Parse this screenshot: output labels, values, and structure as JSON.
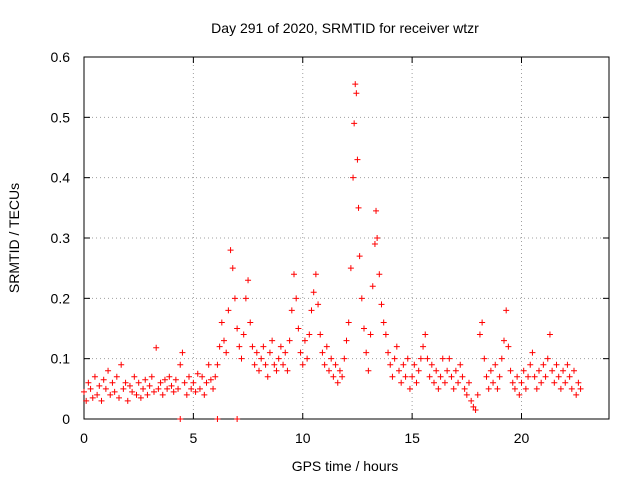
{
  "chart_data": {
    "type": "scatter",
    "title": "Day 291 of 2020, SRMTID for receiver wtzr",
    "xlabel": "GPS time / hours",
    "ylabel": "SRMTID / TECUs",
    "xlim": [
      0,
      24
    ],
    "ylim": [
      0,
      0.6
    ],
    "xticks": [
      0,
      5,
      10,
      15,
      20
    ],
    "xtick_labels": [
      "0",
      "5",
      "10",
      "15",
      "20"
    ],
    "yticks": [
      0,
      0.1,
      0.2,
      0.3,
      0.4,
      0.5,
      0.6
    ],
    "ytick_labels": [
      "0",
      "0.1",
      "0.2",
      "0.3",
      "0.4",
      "0.5",
      "0.6"
    ],
    "grid": true,
    "marker": "+",
    "color": "#ff0000",
    "series": [
      {
        "name": "SRMTID",
        "points": [
          [
            0.0,
            0.045
          ],
          [
            0.1,
            0.03
          ],
          [
            0.2,
            0.06
          ],
          [
            0.3,
            0.05
          ],
          [
            0.4,
            0.035
          ],
          [
            0.5,
            0.07
          ],
          [
            0.6,
            0.04
          ],
          [
            0.7,
            0.055
          ],
          [
            0.8,
            0.03
          ],
          [
            0.9,
            0.065
          ],
          [
            1.0,
            0.05
          ],
          [
            1.1,
            0.08
          ],
          [
            1.2,
            0.04
          ],
          [
            1.3,
            0.06
          ],
          [
            1.4,
            0.045
          ],
          [
            1.5,
            0.07
          ],
          [
            1.6,
            0.035
          ],
          [
            1.7,
            0.09
          ],
          [
            1.8,
            0.05
          ],
          [
            1.9,
            0.06
          ],
          [
            2.0,
            0.03
          ],
          [
            2.1,
            0.055
          ],
          [
            2.2,
            0.045
          ],
          [
            2.3,
            0.07
          ],
          [
            2.4,
            0.04
          ],
          [
            2.5,
            0.06
          ],
          [
            2.6,
            0.035
          ],
          [
            2.7,
            0.05
          ],
          [
            2.8,
            0.065
          ],
          [
            2.9,
            0.04
          ],
          [
            3.0,
            0.055
          ],
          [
            3.1,
            0.07
          ],
          [
            3.2,
            0.045
          ],
          [
            3.3,
            0.118
          ],
          [
            3.4,
            0.05
          ],
          [
            3.5,
            0.06
          ],
          [
            3.6,
            0.04
          ],
          [
            3.7,
            0.065
          ],
          [
            3.8,
            0.05
          ],
          [
            3.9,
            0.07
          ],
          [
            4.0,
            0.055
          ],
          [
            4.1,
            0.045
          ],
          [
            4.2,
            0.065
          ],
          [
            4.3,
            0.05
          ],
          [
            4.4,
            0.09
          ],
          [
            4.5,
            0.11
          ],
          [
            4.6,
            0.06
          ],
          [
            4.7,
            0.04
          ],
          [
            4.8,
            0.07
          ],
          [
            4.9,
            0.05
          ],
          [
            5.0,
            0.06
          ],
          [
            5.1,
            0.045
          ],
          [
            5.2,
            0.075
          ],
          [
            5.3,
            0.05
          ],
          [
            5.4,
            0.07
          ],
          [
            5.5,
            0.04
          ],
          [
            5.6,
            0.06
          ],
          [
            5.7,
            0.09
          ],
          [
            5.8,
            0.065
          ],
          [
            5.9,
            0.05
          ],
          [
            6.0,
            0.07
          ],
          [
            6.1,
            0.09
          ],
          [
            6.2,
            0.12
          ],
          [
            6.3,
            0.16
          ],
          [
            6.4,
            0.13
          ],
          [
            6.5,
            0.11
          ],
          [
            6.6,
            0.18
          ],
          [
            6.7,
            0.28
          ],
          [
            6.8,
            0.25
          ],
          [
            6.9,
            0.2
          ],
          [
            7.0,
            0.15
          ],
          [
            7.1,
            0.12
          ],
          [
            7.2,
            0.1
          ],
          [
            7.3,
            0.14
          ],
          [
            7.4,
            0.2
          ],
          [
            7.5,
            0.23
          ],
          [
            7.6,
            0.16
          ],
          [
            7.7,
            0.12
          ],
          [
            7.8,
            0.09
          ],
          [
            7.9,
            0.11
          ],
          [
            8.0,
            0.08
          ],
          [
            8.1,
            0.1
          ],
          [
            8.2,
            0.12
          ],
          [
            8.3,
            0.09
          ],
          [
            8.4,
            0.07
          ],
          [
            8.5,
            0.11
          ],
          [
            8.6,
            0.13
          ],
          [
            8.7,
            0.09
          ],
          [
            8.8,
            0.08
          ],
          [
            8.9,
            0.1
          ],
          [
            9.0,
            0.12
          ],
          [
            9.1,
            0.09
          ],
          [
            9.2,
            0.11
          ],
          [
            9.3,
            0.08
          ],
          [
            9.4,
            0.13
          ],
          [
            9.5,
            0.18
          ],
          [
            9.6,
            0.24
          ],
          [
            9.7,
            0.2
          ],
          [
            9.8,
            0.15
          ],
          [
            9.9,
            0.11
          ],
          [
            10.0,
            0.09
          ],
          [
            10.1,
            0.13
          ],
          [
            10.2,
            0.1
          ],
          [
            10.3,
            0.14
          ],
          [
            10.4,
            0.18
          ],
          [
            10.5,
            0.21
          ],
          [
            10.6,
            0.24
          ],
          [
            10.7,
            0.19
          ],
          [
            10.8,
            0.14
          ],
          [
            10.9,
            0.11
          ],
          [
            11.0,
            0.09
          ],
          [
            11.1,
            0.12
          ],
          [
            11.2,
            0.08
          ],
          [
            11.3,
            0.1
          ],
          [
            11.4,
            0.07
          ],
          [
            11.5,
            0.09
          ],
          [
            11.6,
            0.06
          ],
          [
            11.7,
            0.08
          ],
          [
            11.8,
            0.07
          ],
          [
            11.9,
            0.1
          ],
          [
            12.0,
            0.13
          ],
          [
            12.1,
            0.16
          ],
          [
            12.2,
            0.25
          ],
          [
            12.3,
            0.4
          ],
          [
            12.35,
            0.49
          ],
          [
            12.4,
            0.555
          ],
          [
            12.45,
            0.54
          ],
          [
            12.5,
            0.43
          ],
          [
            12.55,
            0.35
          ],
          [
            12.6,
            0.27
          ],
          [
            12.7,
            0.2
          ],
          [
            12.8,
            0.15
          ],
          [
            12.9,
            0.11
          ],
          [
            13.0,
            0.08
          ],
          [
            13.1,
            0.14
          ],
          [
            13.2,
            0.22
          ],
          [
            13.3,
            0.29
          ],
          [
            13.35,
            0.345
          ],
          [
            13.4,
            0.3
          ],
          [
            13.5,
            0.24
          ],
          [
            13.6,
            0.19
          ],
          [
            13.7,
            0.16
          ],
          [
            13.8,
            0.14
          ],
          [
            13.9,
            0.11
          ],
          [
            14.0,
            0.09
          ],
          [
            14.1,
            0.07
          ],
          [
            14.2,
            0.1
          ],
          [
            14.3,
            0.12
          ],
          [
            14.4,
            0.08
          ],
          [
            14.5,
            0.06
          ],
          [
            14.6,
            0.09
          ],
          [
            14.7,
            0.07
          ],
          [
            14.8,
            0.1
          ],
          [
            14.9,
            0.05
          ],
          [
            15.0,
            0.07
          ],
          [
            15.1,
            0.09
          ],
          [
            15.2,
            0.06
          ],
          [
            15.3,
            0.08
          ],
          [
            15.4,
            0.1
          ],
          [
            15.5,
            0.12
          ],
          [
            15.6,
            0.14
          ],
          [
            15.7,
            0.1
          ],
          [
            15.8,
            0.07
          ],
          [
            15.9,
            0.09
          ],
          [
            16.0,
            0.06
          ],
          [
            16.1,
            0.08
          ],
          [
            16.2,
            0.05
          ],
          [
            16.3,
            0.07
          ],
          [
            16.4,
            0.1
          ],
          [
            16.5,
            0.06
          ],
          [
            16.6,
            0.08
          ],
          [
            16.7,
            0.1
          ],
          [
            16.8,
            0.07
          ],
          [
            16.9,
            0.05
          ],
          [
            17.0,
            0.08
          ],
          [
            17.1,
            0.06
          ],
          [
            17.2,
            0.09
          ],
          [
            17.3,
            0.07
          ],
          [
            17.4,
            0.05
          ],
          [
            17.5,
            0.04
          ],
          [
            17.6,
            0.06
          ],
          [
            17.7,
            0.03
          ],
          [
            17.8,
            0.02
          ],
          [
            17.9,
            0.015
          ],
          [
            18.0,
            0.04
          ],
          [
            18.1,
            0.14
          ],
          [
            18.2,
            0.16
          ],
          [
            18.3,
            0.1
          ],
          [
            18.4,
            0.07
          ],
          [
            18.5,
            0.05
          ],
          [
            18.6,
            0.08
          ],
          [
            18.7,
            0.06
          ],
          [
            18.8,
            0.09
          ],
          [
            18.9,
            0.05
          ],
          [
            19.0,
            0.07
          ],
          [
            19.1,
            0.1
          ],
          [
            19.2,
            0.13
          ],
          [
            19.3,
            0.18
          ],
          [
            19.4,
            0.12
          ],
          [
            19.5,
            0.08
          ],
          [
            19.6,
            0.06
          ],
          [
            19.7,
            0.05
          ],
          [
            19.8,
            0.07
          ],
          [
            19.9,
            0.04
          ],
          [
            20.0,
            0.06
          ],
          [
            20.1,
            0.08
          ],
          [
            20.2,
            0.05
          ],
          [
            20.3,
            0.07
          ],
          [
            20.4,
            0.09
          ],
          [
            20.5,
            0.11
          ],
          [
            20.6,
            0.07
          ],
          [
            20.7,
            0.05
          ],
          [
            20.8,
            0.08
          ],
          [
            20.9,
            0.06
          ],
          [
            21.0,
            0.09
          ],
          [
            21.1,
            0.07
          ],
          [
            21.2,
            0.1
          ],
          [
            21.3,
            0.14
          ],
          [
            21.4,
            0.08
          ],
          [
            21.5,
            0.06
          ],
          [
            21.6,
            0.09
          ],
          [
            21.7,
            0.07
          ],
          [
            21.8,
            0.05
          ],
          [
            21.9,
            0.08
          ],
          [
            22.0,
            0.06
          ],
          [
            22.1,
            0.09
          ],
          [
            22.2,
            0.07
          ],
          [
            22.3,
            0.05
          ],
          [
            22.4,
            0.08
          ],
          [
            22.5,
            0.04
          ],
          [
            22.6,
            0.06
          ],
          [
            22.7,
            0.05
          ],
          [
            4.4,
            0.0
          ],
          [
            6.1,
            0.0
          ],
          [
            7.0,
            0.0
          ]
        ]
      }
    ]
  }
}
